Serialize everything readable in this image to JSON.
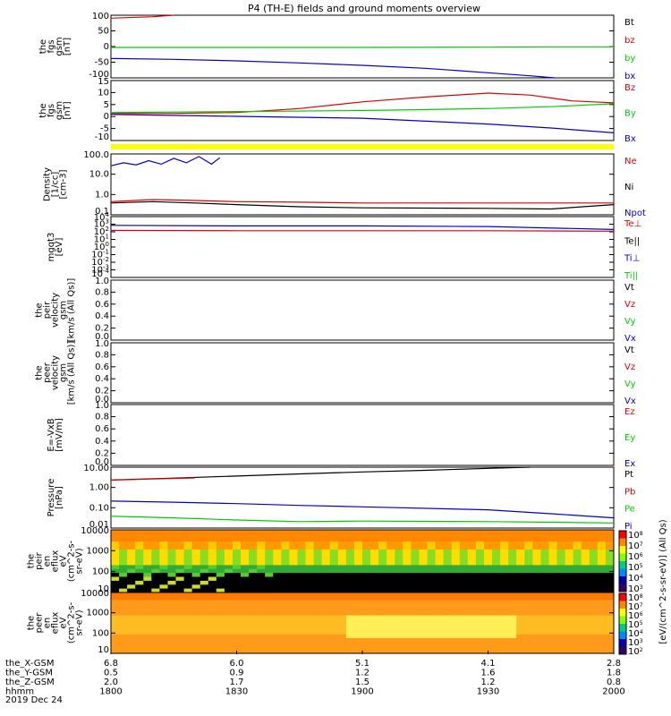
{
  "title": "P4 (TH-E) fields and ground moments overview",
  "date_label": "2019 Dec 24",
  "colors": {
    "black": "#000000",
    "red": "#e00000",
    "green": "#00cc00",
    "blue": "#0000cc",
    "yellow": "#ffff00"
  },
  "x_axis": {
    "rows": [
      {
        "name": "the_X-GSM",
        "values": [
          "6.8",
          "6.0",
          "5.1",
          "4.1",
          "2.8"
        ]
      },
      {
        "name": "the_Y-GSM",
        "values": [
          "0.5",
          "0.9",
          "1.2",
          "1.6",
          "1.8"
        ]
      },
      {
        "name": "the_Z-GSM",
        "values": [
          "2.0",
          "1.7",
          "1.5",
          "1.2",
          "0.8"
        ]
      },
      {
        "name": "hhmm",
        "values": [
          "1800",
          "1830",
          "1900",
          "1930",
          "2000"
        ]
      }
    ]
  },
  "chart_data": [
    {
      "type": "line",
      "ylabel_lines": [
        "the",
        "fgs",
        "gsm",
        "[nT]"
      ],
      "yticks": [
        "100",
        "50",
        "0",
        "-50",
        "-100"
      ],
      "ylim": [
        -100,
        110
      ],
      "legend": [
        {
          "label": "Bt",
          "color": "black"
        },
        {
          "label": "bz",
          "color": "red"
        },
        {
          "label": "by",
          "color": "green"
        },
        {
          "label": "bx",
          "color": "blue"
        }
      ],
      "series": [
        {
          "name": "bz",
          "color": "red",
          "x": [
            1800,
            1810,
            1815
          ],
          "y": [
            100,
            105,
            110
          ]
        },
        {
          "name": "by",
          "color": "green",
          "x": [
            1800,
            1830,
            1900,
            1930,
            1945,
            2000
          ],
          "y": [
            2,
            2,
            2,
            3,
            4,
            4
          ]
        },
        {
          "name": "bx",
          "color": "blue",
          "x": [
            1800,
            1815,
            1830,
            1845,
            1900,
            1915,
            1930,
            1940,
            1946
          ],
          "y": [
            -35,
            -38,
            -43,
            -50,
            -58,
            -68,
            -83,
            -93,
            -100
          ]
        }
      ]
    },
    {
      "type": "line",
      "ylabel_lines": [
        "the",
        "fgs",
        "gsm",
        "[nT]"
      ],
      "yticks": [
        "15",
        "10",
        "5",
        "0",
        "-5",
        "-10"
      ],
      "ylim": [
        -14,
        17
      ],
      "legend": [
        {
          "label": "Bz",
          "color": "red"
        },
        {
          "label": "By",
          "color": "green"
        },
        {
          "label": "Bx",
          "color": "blue"
        }
      ],
      "series": [
        {
          "name": "Bz",
          "color": "red",
          "x": [
            1800,
            1815,
            1830,
            1845,
            1900,
            1915,
            1930,
            1940,
            1945,
            1950,
            1955,
            2000
          ],
          "y": [
            0,
            0,
            0.5,
            2.5,
            6,
            8.5,
            10.5,
            9.5,
            8,
            6.5,
            6,
            5.5
          ]
        },
        {
          "name": "By",
          "color": "green",
          "x": [
            1800,
            1830,
            1900,
            1930,
            1945,
            2000
          ],
          "y": [
            0.5,
            1,
            1.5,
            2.5,
            3.5,
            5
          ]
        },
        {
          "name": "Bx",
          "color": "blue",
          "x": [
            1800,
            1830,
            1900,
            1930,
            1945,
            2000
          ],
          "y": [
            -0.5,
            -1.5,
            -2.5,
            -5.5,
            -7.5,
            -10
          ]
        }
      ]
    },
    {
      "type": "line",
      "log": true,
      "ylabel_lines": [
        "Density",
        "[1/cc]",
        "[cm-3]"
      ],
      "yticks": [
        "100.0",
        "10.0",
        "1.0",
        "0.1"
      ],
      "ylim": [
        0.05,
        200
      ],
      "legend": [
        {
          "label": "Ne",
          "color": "red"
        },
        {
          "label": "Ni",
          "color": "black"
        },
        {
          "label": "Npot",
          "color": "blue"
        }
      ],
      "series": [
        {
          "name": "Npot",
          "color": "blue",
          "x": [
            1800,
            1803,
            1806,
            1809,
            1812,
            1815,
            1818,
            1821,
            1824,
            1826
          ],
          "y": [
            40,
            60,
            45,
            80,
            50,
            110,
            60,
            140,
            50,
            120
          ]
        },
        {
          "name": "Ne",
          "color": "red",
          "x": [
            1800,
            1810,
            1820,
            1830,
            1845,
            1900,
            1930,
            2000
          ],
          "y": [
            0.3,
            0.4,
            0.35,
            0.3,
            0.28,
            0.25,
            0.25,
            0.25
          ]
        },
        {
          "name": "Ni",
          "color": "black",
          "x": [
            1800,
            1810,
            1820,
            1830,
            1845,
            1900,
            1930,
            1945,
            2000
          ],
          "y": [
            0.25,
            0.3,
            0.25,
            0.2,
            0.15,
            0.13,
            0.12,
            0.11,
            0.2
          ]
        }
      ]
    },
    {
      "type": "line",
      "log": true,
      "ylabel_lines": [
        "mgqt3",
        "[eV]"
      ],
      "yticks": [
        "10^4",
        "10^3",
        "10^2",
        "10^1",
        "10^0",
        "10^-1",
        "10^-2",
        "10^-3",
        "10^-4"
      ],
      "ylim": [
        0.0001,
        10000
      ],
      "legend": [
        {
          "label": "Te⊥",
          "color": "red"
        },
        {
          "label": "Te||",
          "color": "black"
        },
        {
          "label": "Ti⊥",
          "color": "blue"
        },
        {
          "label": "Ti||",
          "color": "green"
        }
      ],
      "series": [
        {
          "name": "Te⊥",
          "color": "red",
          "x": [
            1800,
            1830,
            1900,
            1930,
            2000
          ],
          "y": [
            150,
            140,
            140,
            140,
            120
          ]
        },
        {
          "name": "Ti⊥",
          "color": "blue",
          "x": [
            1800,
            1830,
            1900,
            1930,
            2000
          ],
          "y": [
            700,
            600,
            600,
            500,
            200
          ]
        }
      ]
    },
    {
      "type": "line",
      "ylabel_lines": [
        "the",
        "peir",
        "velocity",
        "gsm",
        "[km/s (All Qs)]"
      ],
      "yticks": [
        "1.0",
        "0.8",
        "0.6",
        "0.4",
        "0.2",
        "0.0"
      ],
      "ylim": [
        0,
        1
      ],
      "legend": [
        {
          "label": "Vt",
          "color": "black"
        },
        {
          "label": "Vz",
          "color": "red"
        },
        {
          "label": "Vy",
          "color": "green"
        },
        {
          "label": "Vx",
          "color": "blue"
        }
      ],
      "series": []
    },
    {
      "type": "line",
      "ylabel_lines": [
        "the",
        "peer",
        "velocity",
        "gsm",
        "[km/s (All Qs)]"
      ],
      "yticks": [
        "1.0",
        "0.8",
        "0.6",
        "0.4",
        "0.2",
        "0.0"
      ],
      "ylim": [
        0,
        1
      ],
      "legend": [
        {
          "label": "Vt",
          "color": "black"
        },
        {
          "label": "Vz",
          "color": "red"
        },
        {
          "label": "Vy",
          "color": "green"
        },
        {
          "label": "Vx",
          "color": "blue"
        }
      ],
      "series": []
    },
    {
      "type": "line",
      "ylabel_lines": [
        "E=-VxB",
        "[mV/m]"
      ],
      "yticks": [
        "1.0",
        "0.8",
        "0.6",
        "0.4",
        "0.2",
        "0.0"
      ],
      "ylim": [
        0,
        1
      ],
      "legend": [
        {
          "label": "Ez",
          "color": "red"
        },
        {
          "label": "Ey",
          "color": "green"
        },
        {
          "label": "Ex",
          "color": "blue"
        }
      ],
      "series": []
    },
    {
      "type": "line",
      "log": true,
      "ylabel_lines": [
        "Pressure",
        "[nPa]"
      ],
      "yticks": [
        "10.00",
        "1.00",
        "0.10",
        "0.01"
      ],
      "ylim": [
        0.005,
        20
      ],
      "legend": [
        {
          "label": "Pt",
          "color": "black"
        },
        {
          "label": "Pb",
          "color": "red"
        },
        {
          "label": "Pe",
          "color": "green"
        },
        {
          "label": "Pi",
          "color": "blue"
        }
      ],
      "series": [
        {
          "name": "Pt",
          "color": "black",
          "x": [
            1800,
            1815,
            1830,
            1845,
            1900,
            1915,
            1930,
            1940
          ],
          "y": [
            3.5,
            4.5,
            6,
            8,
            10.5,
            13,
            17,
            20
          ]
        },
        {
          "name": "Pb",
          "color": "red",
          "x": [
            1800,
            1810,
            1820
          ],
          "y": [
            3.4,
            4,
            4.6
          ]
        },
        {
          "name": "Pi",
          "color": "blue",
          "x": [
            1800,
            1815,
            1830,
            1845,
            1900,
            1930,
            1945,
            2000
          ],
          "y": [
            0.2,
            0.17,
            0.14,
            0.11,
            0.09,
            0.06,
            0.035,
            0.02
          ]
        },
        {
          "name": "Pe",
          "color": "green",
          "x": [
            1800,
            1815,
            1830,
            1845,
            1900,
            1930,
            1945,
            2000
          ],
          "y": [
            0.025,
            0.02,
            0.015,
            0.012,
            0.013,
            0.012,
            0.011,
            0.01
          ]
        }
      ]
    },
    {
      "type": "heatmap",
      "ylabel_lines": [
        "the",
        "peir",
        "en",
        "eflux",
        "eV",
        "(cm^2-s-",
        "sr-eV)"
      ],
      "yticks": [
        "10000",
        "1000",
        "100",
        "10"
      ],
      "ylim": [
        5,
        30000
      ]
    },
    {
      "type": "heatmap",
      "ylabel_lines": [
        "the",
        "peer",
        "en",
        "eflux",
        "eV",
        "(cm^2-s-",
        "sr-eV)"
      ],
      "yticks": [
        "10000",
        "1000",
        "100",
        "10"
      ],
      "ylim": [
        5,
        30000
      ]
    }
  ],
  "colorbar": {
    "ticks": [
      "10^8",
      "10^7",
      "10^6",
      "10^5",
      "10^4",
      "10^3"
    ],
    "ticks2": [
      "10^8",
      "10^7",
      "10^6",
      "10^5",
      "10^4",
      "10^3",
      "10^2"
    ],
    "label": "[eV/(cm^2-s-sr-eV)] (All Qs)"
  },
  "yellow_bar": {
    "present": true
  }
}
